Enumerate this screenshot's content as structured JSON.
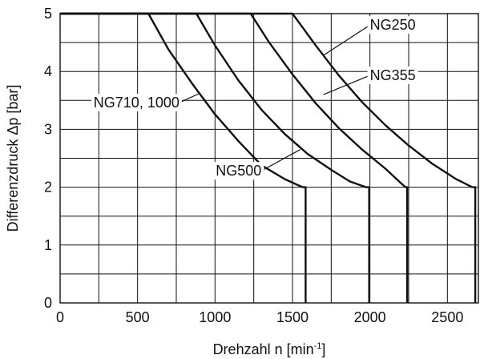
{
  "chart_data": {
    "type": "line",
    "xlabel": "Drehzahl n [min",
    "xlabel_unit_exponent": "-1",
    "xlabel_suffix": "]",
    "ylabel": "Differenzdruck Δp [bar]",
    "xlim": [
      0,
      2700
    ],
    "ylim": [
      0,
      5
    ],
    "x_ticks": [
      "0",
      "500",
      "1000",
      "1500",
      "2000",
      "2500"
    ],
    "y_ticks": [
      "0",
      "1",
      "2",
      "3",
      "4",
      "5"
    ],
    "grid": true,
    "series": [
      {
        "name": "NG710, 1000",
        "points": [
          [
            0,
            5
          ],
          [
            570,
            5
          ],
          [
            700,
            4.38
          ],
          [
            850,
            3.8
          ],
          [
            1000,
            3.26
          ],
          [
            1150,
            2.8
          ],
          [
            1300,
            2.38
          ],
          [
            1450,
            2.14
          ],
          [
            1565,
            2.0
          ],
          [
            1585,
            2.0
          ],
          [
            1585,
            0
          ]
        ]
      },
      {
        "name": "NG500",
        "points": [
          [
            0,
            5
          ],
          [
            880,
            5
          ],
          [
            1000,
            4.45
          ],
          [
            1150,
            3.85
          ],
          [
            1300,
            3.34
          ],
          [
            1450,
            2.92
          ],
          [
            1600,
            2.57
          ],
          [
            1750,
            2.3
          ],
          [
            1870,
            2.1
          ],
          [
            1975,
            2.0
          ],
          [
            1995,
            2.0
          ],
          [
            1995,
            0
          ]
        ]
      },
      {
        "name": "NG355",
        "points": [
          [
            0,
            5
          ],
          [
            1230,
            5
          ],
          [
            1350,
            4.5
          ],
          [
            1500,
            3.95
          ],
          [
            1650,
            3.45
          ],
          [
            1800,
            3.02
          ],
          [
            1950,
            2.65
          ],
          [
            2100,
            2.32
          ],
          [
            2200,
            2.07
          ],
          [
            2230,
            2.0
          ],
          [
            2240,
            2.0
          ],
          [
            2240,
            0
          ]
        ]
      },
      {
        "name": "NG250",
        "points": [
          [
            0,
            5
          ],
          [
            1500,
            5
          ],
          [
            1650,
            4.45
          ],
          [
            1800,
            3.93
          ],
          [
            1950,
            3.47
          ],
          [
            2100,
            3.07
          ],
          [
            2250,
            2.72
          ],
          [
            2400,
            2.41
          ],
          [
            2550,
            2.15
          ],
          [
            2660,
            2.0
          ],
          [
            2680,
            2.0
          ],
          [
            2680,
            0
          ]
        ]
      }
    ],
    "annotations": [
      {
        "text": "NG250",
        "series": "NG250",
        "point": [
          1700,
          4.28
        ],
        "label_at": [
          2000,
          4.72
        ],
        "anchor": "start"
      },
      {
        "text": "NG355",
        "series": "NG355",
        "point": [
          1700,
          3.6
        ],
        "label_at": [
          2000,
          3.85
        ],
        "anchor": "start"
      },
      {
        "text": "NG710, 1000",
        "series": "NG710, 1000",
        "point": [
          900,
          3.62
        ],
        "label_at": [
          770,
          3.38
        ],
        "anchor": "end"
      },
      {
        "text": "NG500",
        "series": "NG500",
        "point": [
          1550,
          2.65
        ],
        "label_at": [
          1300,
          2.2
        ],
        "anchor": "end"
      }
    ]
  }
}
